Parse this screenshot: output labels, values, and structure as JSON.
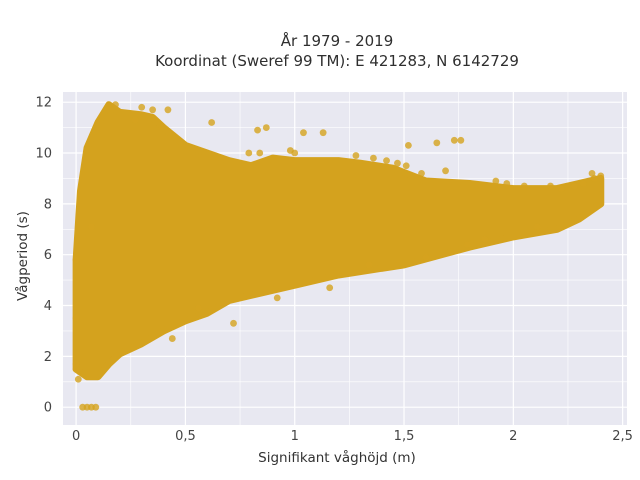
{
  "chart_data": {
    "type": "scatter",
    "title_lines": [
      "År 1979 - 2019",
      "Koordinat (Sweref 99 TM): E 421283, N 6142729"
    ],
    "xlabel": "Signifikant våghöjd (m)",
    "ylabel": "Vågperiod (s)",
    "xlim": [
      -0.06,
      2.52
    ],
    "ylim": [
      -0.7,
      12.4
    ],
    "xticks": [
      0,
      0.5,
      1,
      1.5,
      2,
      2.5
    ],
    "xtick_labels": [
      "0",
      "0,5",
      "1",
      "1,5",
      "2",
      "2,5"
    ],
    "yticks": [
      0,
      2,
      4,
      6,
      8,
      10,
      12
    ],
    "ytick_labels": [
      "0",
      "2",
      "4",
      "6",
      "8",
      "10",
      "12"
    ],
    "grid": true,
    "colors": {
      "marker": "#d4a21e",
      "plot_bg": "#e8e8f1",
      "grid": "#ffffff"
    },
    "series": [
      {
        "envelope": {
          "upper": [
            [
              0.0,
              5.8
            ],
            [
              0.02,
              8.5
            ],
            [
              0.05,
              10.2
            ],
            [
              0.1,
              11.2
            ],
            [
              0.15,
              11.9
            ],
            [
              0.2,
              11.6
            ],
            [
              0.3,
              11.5
            ],
            [
              0.35,
              11.4
            ],
            [
              0.4,
              11.0
            ],
            [
              0.5,
              10.3
            ],
            [
              0.6,
              10.0
            ],
            [
              0.7,
              9.7
            ],
            [
              0.8,
              9.5
            ],
            [
              0.9,
              9.8
            ],
            [
              1.0,
              9.7
            ],
            [
              1.2,
              9.7
            ],
            [
              1.3,
              9.6
            ],
            [
              1.45,
              9.4
            ],
            [
              1.6,
              8.9
            ],
            [
              1.8,
              8.8
            ],
            [
              2.0,
              8.6
            ],
            [
              2.2,
              8.6
            ],
            [
              2.3,
              8.8
            ],
            [
              2.4,
              9.0
            ]
          ],
          "lower": [
            [
              0.0,
              1.5
            ],
            [
              0.05,
              1.2
            ],
            [
              0.1,
              1.2
            ],
            [
              0.15,
              1.7
            ],
            [
              0.2,
              2.1
            ],
            [
              0.3,
              2.5
            ],
            [
              0.4,
              3.0
            ],
            [
              0.5,
              3.4
            ],
            [
              0.6,
              3.7
            ],
            [
              0.7,
              4.2
            ],
            [
              0.8,
              4.4
            ],
            [
              1.0,
              4.8
            ],
            [
              1.2,
              5.2
            ],
            [
              1.5,
              5.6
            ],
            [
              1.8,
              6.3
            ],
            [
              2.0,
              6.7
            ],
            [
              2.2,
              7.0
            ],
            [
              2.3,
              7.4
            ],
            [
              2.4,
              8.0
            ]
          ]
        },
        "points": [
          [
            0.03,
            0.0
          ],
          [
            0.05,
            0.0
          ],
          [
            0.07,
            0.0
          ],
          [
            0.09,
            0.0
          ],
          [
            0.0,
            1.5
          ],
          [
            0.0,
            1.7
          ],
          [
            0.01,
            1.1
          ],
          [
            0.0,
            3.5
          ],
          [
            0.0,
            5.8
          ],
          [
            0.07,
            7.1
          ],
          [
            0.18,
            11.9
          ],
          [
            0.3,
            11.8
          ],
          [
            0.35,
            11.7
          ],
          [
            0.42,
            11.7
          ],
          [
            0.27,
            11.3
          ],
          [
            0.62,
            11.2
          ],
          [
            0.87,
            11.0
          ],
          [
            0.83,
            10.9
          ],
          [
            1.04,
            10.8
          ],
          [
            1.13,
            10.8
          ],
          [
            1.73,
            10.5
          ],
          [
            1.76,
            10.5
          ],
          [
            1.65,
            10.4
          ],
          [
            1.52,
            10.3
          ],
          [
            0.98,
            10.1
          ],
          [
            0.79,
            10.0
          ],
          [
            0.84,
            10.0
          ],
          [
            1.0,
            10.0
          ],
          [
            1.28,
            9.9
          ],
          [
            1.36,
            9.8
          ],
          [
            1.42,
            9.7
          ],
          [
            1.47,
            9.6
          ],
          [
            1.51,
            9.5
          ],
          [
            1.58,
            9.2
          ],
          [
            1.69,
            9.3
          ],
          [
            1.92,
            8.9
          ],
          [
            1.97,
            8.8
          ],
          [
            2.05,
            8.7
          ],
          [
            2.17,
            8.7
          ],
          [
            2.22,
            8.6
          ],
          [
            2.28,
            8.7
          ],
          [
            2.32,
            8.8
          ],
          [
            2.37,
            9.0
          ],
          [
            2.4,
            9.1
          ],
          [
            2.36,
            9.2
          ],
          [
            0.72,
            3.3
          ],
          [
            0.56,
            3.9
          ],
          [
            0.44,
            2.7
          ],
          [
            1.34,
            5.6
          ],
          [
            1.79,
            6.4
          ],
          [
            2.11,
            7.1
          ],
          [
            1.16,
            4.7
          ],
          [
            0.92,
            4.3
          ],
          [
            1.6,
            5.9
          ],
          [
            1.87,
            6.6
          ]
        ]
      }
    ]
  }
}
